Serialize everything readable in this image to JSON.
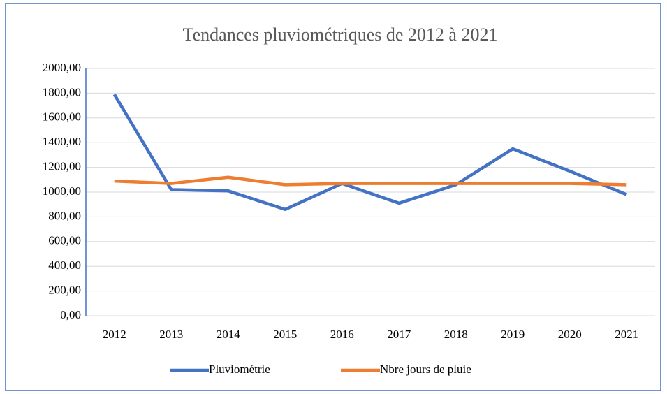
{
  "chart_data": {
    "type": "line",
    "title": "Tendances pluviométriques  de 2012 à 2021",
    "categories": [
      "2012",
      "2013",
      "2014",
      "2015",
      "2016",
      "2017",
      "2018",
      "2019",
      "2020",
      "2021"
    ],
    "series": [
      {
        "name": "Pluviométrie",
        "color": "#4472c4",
        "values": [
          1790,
          1020,
          1010,
          860,
          1070,
          910,
          1060,
          1350,
          1170,
          980
        ]
      },
      {
        "name": "Nbre jours de pluie",
        "color": "#ed7d31",
        "values": [
          1090,
          1070,
          1120,
          1060,
          1070,
          1070,
          1070,
          1070,
          1070,
          1060
        ]
      }
    ],
    "ylim": [
      0,
      2000
    ],
    "yticks": [
      {
        "value": 0,
        "label": "0,00"
      },
      {
        "value": 200,
        "label": "200,00"
      },
      {
        "value": 400,
        "label": "400,00"
      },
      {
        "value": 600,
        "label": "600,00"
      },
      {
        "value": 800,
        "label": "800,00"
      },
      {
        "value": 1000,
        "label": "1000,00"
      },
      {
        "value": 1200,
        "label": "1200,00"
      },
      {
        "value": 1400,
        "label": "1400,00"
      },
      {
        "value": 1600,
        "label": "1600,00"
      },
      {
        "value": 1800,
        "label": "1800,00"
      },
      {
        "value": 2000,
        "label": "2000,00"
      }
    ],
    "grid": true,
    "legend": "bottom"
  }
}
